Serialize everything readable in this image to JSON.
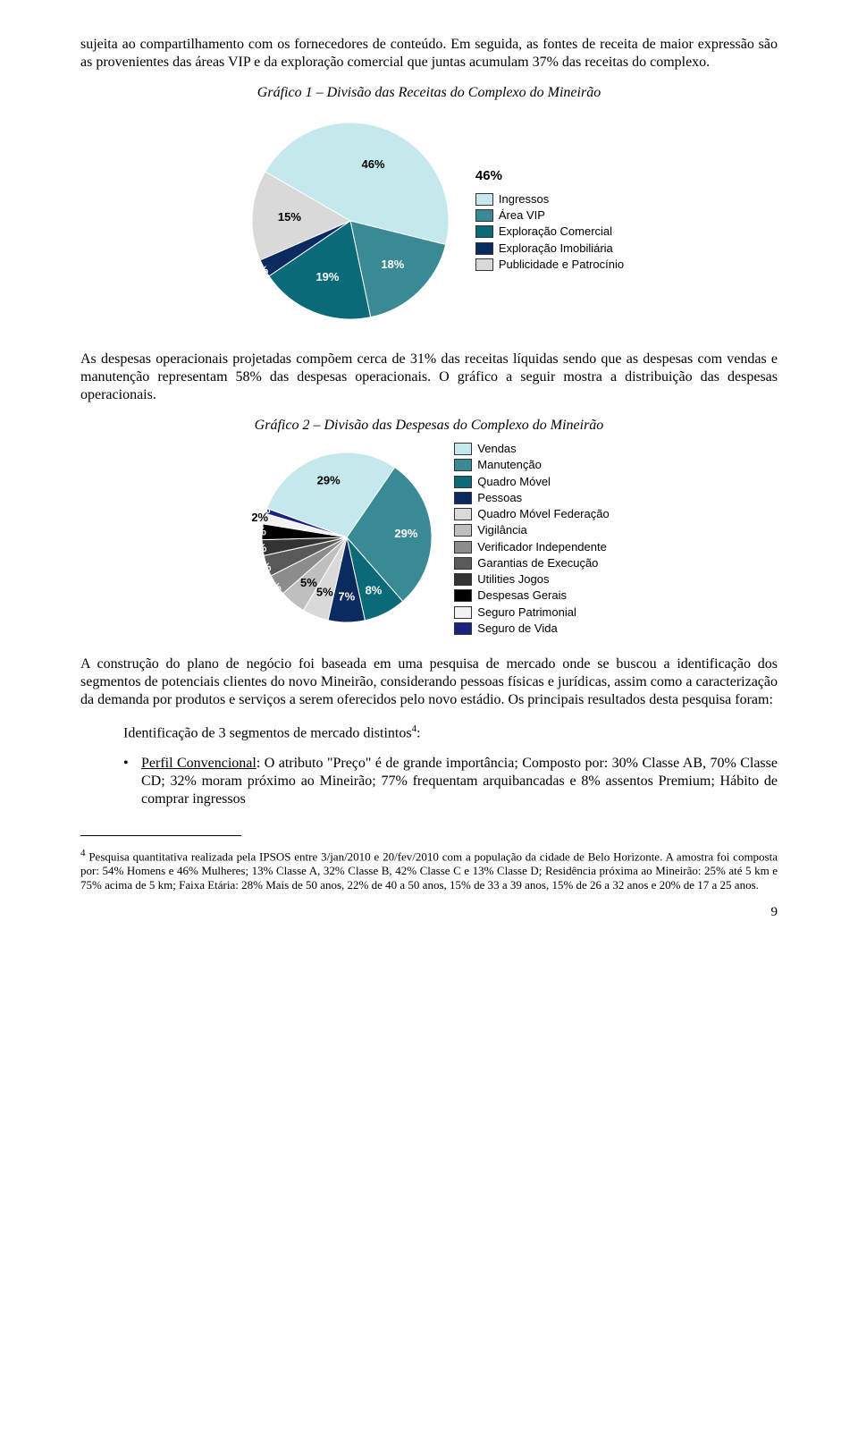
{
  "para1": "sujeita ao compartilhamento com os fornecedores de conteúdo. Em seguida, as fontes de receita de maior expressão são as provenientes das áreas VIP e da exploração comercial que juntas acumulam 37% das receitas do complexo.",
  "chart1": {
    "title": "Gráfico 1 – Divisão das Receitas do Complexo do Mineirão",
    "type": "pie",
    "slices": [
      {
        "label": "Ingressos",
        "value": 46,
        "color": "#c5e8ec",
        "text_dark": true
      },
      {
        "label": "Área VIP",
        "value": 18,
        "color": "#3a8a95",
        "text_dark": false
      },
      {
        "label": "Exploração Comercial",
        "value": 19,
        "color": "#0a6a77",
        "text_dark": false
      },
      {
        "label": "Exploração Imobiliária",
        "value": 3,
        "color": "#0a2a60",
        "text_dark": false
      },
      {
        "label": "Publicidade e Patrocínio",
        "value": 15,
        "color": "#d9d9d9",
        "text_dark": true
      }
    ],
    "start_angle": -60,
    "legend_title": "46%",
    "stroke": "#ffffff"
  },
  "para2": "As despesas operacionais projetadas compõem cerca de 31% das receitas líquidas sendo que as despesas com vendas e manutenção representam 58% das despesas operacionais. O gráfico a seguir mostra a distribuição das despesas operacionais.",
  "chart2": {
    "title": "Gráfico 2 – Divisão das Despesas do Complexo do Mineirão",
    "type": "pie",
    "slices": [
      {
        "label": "Vendas",
        "value": 29,
        "color": "#c5e8ec",
        "text_dark": true
      },
      {
        "label": "Manutenção",
        "value": 29,
        "color": "#3a8a95",
        "text_dark": false
      },
      {
        "label": "Quadro Móvel",
        "value": 8,
        "color": "#0a6a77",
        "text_dark": false
      },
      {
        "label": "Pessoas",
        "value": 7,
        "color": "#0a2a60",
        "text_dark": false
      },
      {
        "label": "Quadro Móvel Federação",
        "value": 5,
        "color": "#d9d9d9",
        "text_dark": true
      },
      {
        "label": "Vigilância",
        "value": 5,
        "color": "#bfbfbf",
        "text_dark": true
      },
      {
        "label": "Verificador Independente",
        "value": 4,
        "color": "#8c8c8c",
        "text_dark": false
      },
      {
        "label": "Garantias de Execução",
        "value": 4,
        "color": "#595959",
        "text_dark": false
      },
      {
        "label": "Utilities Jogos",
        "value": 3,
        "color": "#333333",
        "text_dark": false
      },
      {
        "label": "Despesas Gerais",
        "value": 3,
        "color": "#000000",
        "text_dark": false
      },
      {
        "label": "Seguro Patrimonial",
        "value": 2,
        "color": "#f2f2f2",
        "text_dark": true
      },
      {
        "label": "Seguro de Vida",
        "value": 1,
        "color": "#1a237e",
        "text_dark": false
      }
    ],
    "start_angle": -70,
    "stroke": "#ffffff"
  },
  "para3": "A construção do plano de negócio foi baseada em uma pesquisa de mercado onde se buscou a identificação dos segmentos de potenciais clientes do novo Mineirão, considerando pessoas físicas e jurídicas, assim como a caracterização da demanda por produtos e serviços a serem oferecidos pelo novo estádio. Os principais resultados desta pesquisa foram:",
  "indent_line_pre": "Identificação de 3 segmentos de mercado distintos",
  "indent_line_sup": "4",
  "indent_line_post": ":",
  "bullet1_pre": "Perfil Convencional",
  "bullet1_rest": ": O atributo \"Preço\" é de grande importância; Composto por: 30% Classe AB, 70% Classe CD; 32% moram próximo ao Mineirão; 77% frequentam arquibancadas e 8% assentos Premium; Hábito de comprar ingressos",
  "footnote_sup": "4",
  "footnote": " Pesquisa quantitativa realizada pela IPSOS entre 3/jan/2010 e 20/fev/2010 com a população da cidade de Belo Horizonte. A amostra foi composta por: 54% Homens e 46% Mulheres; 13% Classe A, 32% Classe B, 42% Classe C e 13% Classe D; Residência próxima ao Mineirão: 25%  até 5 km e 75% acima de 5 km; Faixa Etária: 28% Mais de 50 anos, 22% de 40 a 50 anos, 15% de 33 a 39 anos, 15% de 26 a 32 anos e 20% de 17 a 25 anos.",
  "page_number": "9"
}
